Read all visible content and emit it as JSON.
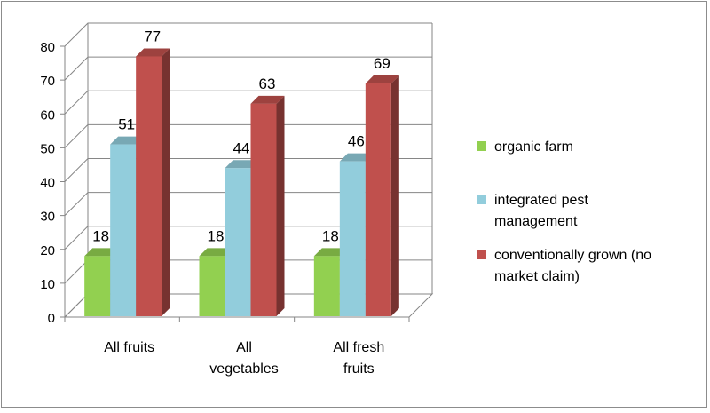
{
  "chart_data": {
    "type": "bar",
    "categories": [
      [
        "All fruits"
      ],
      [
        "All",
        "vegetables"
      ],
      [
        "All fresh",
        "fruits"
      ]
    ],
    "series": [
      {
        "name": "organic farm",
        "values": [
          18,
          18,
          18
        ],
        "color": "#92d050"
      },
      {
        "name": "integrated pest management",
        "legend_lines": [
          "integrated pest",
          "management"
        ],
        "values": [
          51,
          44,
          46
        ],
        "color": "#92cddc"
      },
      {
        "name": "conventionally grown (no market claim)",
        "legend_lines": [
          "conventionally grown (no",
          "market claim)"
        ],
        "values": [
          77,
          63,
          69
        ],
        "color": "#c0504d"
      }
    ],
    "ylim": [
      0,
      80
    ],
    "yticks": [
      0,
      10,
      20,
      30,
      40,
      50,
      60,
      70,
      80
    ],
    "grid": true,
    "legend_position": "right",
    "three_d": true
  }
}
